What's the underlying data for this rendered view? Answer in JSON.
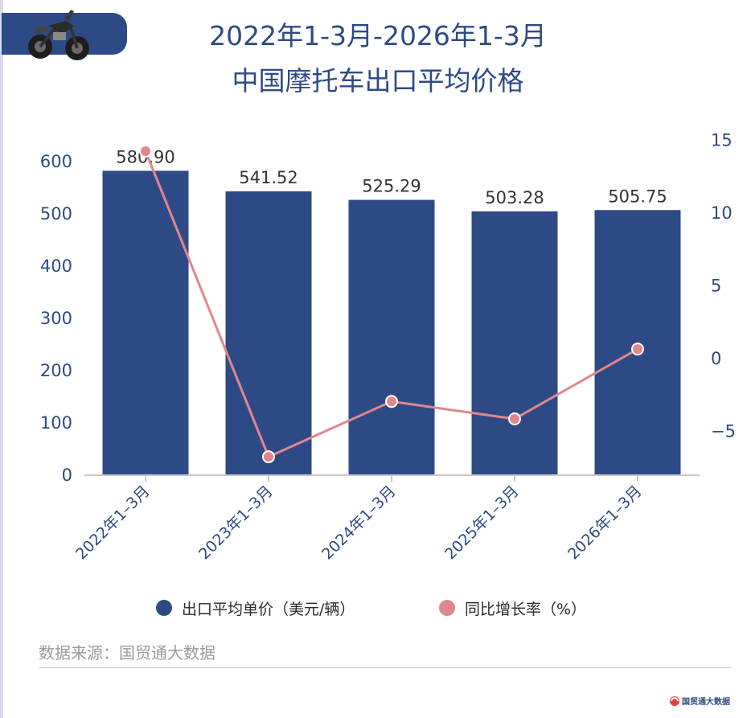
{
  "title_line1": "2022年1-3月-2026年1-3月",
  "title_line2": "中国摩托车出口平均价格",
  "chart_data": {
    "type": "bar",
    "categories": [
      "2022年1–3月",
      "2023年1–3月",
      "2024年1–3月",
      "2025年1–3月",
      "2026年1–3月"
    ],
    "series": [
      {
        "name": "出口平均单价（美元/辆）",
        "type": "bar",
        "axis": "left",
        "values": [
          580.9,
          541.52,
          525.29,
          503.28,
          505.75
        ],
        "labels": [
          "580.90",
          "541.52",
          "525.29",
          "503.28",
          "505.75"
        ]
      },
      {
        "name": "同比增长率（%）",
        "type": "line",
        "axis": "right",
        "values": [
          14.2,
          -6.8,
          -3.0,
          -4.2,
          0.6
        ]
      }
    ],
    "y_left": {
      "min": 0,
      "max": 600,
      "ticks": [
        0,
        100,
        200,
        300,
        400,
        500,
        600
      ]
    },
    "y_right": {
      "min": -8,
      "max": 15,
      "ticks": [
        -5,
        0,
        5,
        10,
        15
      ],
      "tick_labels": [
        "−5",
        "0",
        "5",
        "10",
        "15"
      ]
    },
    "grid": false,
    "legend_position": "bottom",
    "colors": {
      "bar": "#2e4a86",
      "line": "#e0878b",
      "axis_text": "#2e4a86",
      "label_text": "#333333"
    }
  },
  "legend": {
    "bar_label": "出口平均单价（美元/辆）",
    "line_label": "同比增长率（%）"
  },
  "source": "数据来源：国贸通大数据",
  "logo_text": "国贸通大数据",
  "icons": {
    "header": "motorcycle-icon",
    "logo": "brand-logo-icon"
  }
}
